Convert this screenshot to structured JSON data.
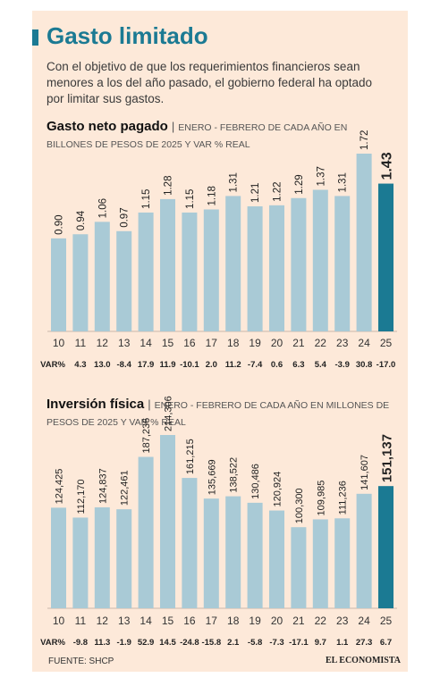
{
  "header": {
    "title": "Gasto limitado",
    "intro": "Con el objetivo de que los requerimientos financieros sean menores a los del año pasado, el gobierno federal ha optado por limitar sus gastos."
  },
  "colors": {
    "background": "#fde9d9",
    "accent": "#1b7a93",
    "bar": "#a9cad6",
    "highlight_bar": "#1b7a93"
  },
  "chart_data": [
    {
      "type": "bar",
      "title": "Gasto neto pagado",
      "subtitle": "ENERO  - FEBRERO DE CADA AÑO EN BILLONES DE PESOS DE 2025 Y VAR % REAL",
      "categories": [
        "10",
        "11",
        "12",
        "13",
        "14",
        "15",
        "16",
        "17",
        "18",
        "19",
        "20",
        "21",
        "22",
        "23",
        "24",
        "25"
      ],
      "values": [
        0.9,
        0.94,
        1.06,
        0.97,
        1.15,
        1.28,
        1.15,
        1.18,
        1.31,
        1.21,
        1.22,
        1.29,
        1.37,
        1.31,
        1.72,
        1.43
      ],
      "value_labels": [
        "0.90",
        "0.94",
        "1.06",
        "0.97",
        "1.15",
        "1.28",
        "1.15",
        "1.18",
        "1.31",
        "1.21",
        "1.22",
        "1.29",
        "1.37",
        "1.31",
        "1.72",
        "1.43"
      ],
      "var_label": "VAR%",
      "var": [
        "4.3",
        "13.0",
        "-8.4",
        "17.9",
        "11.9",
        "-10.1",
        "2.0",
        "11.2",
        "-7.4",
        "0.6",
        "6.3",
        "5.4",
        "-3.9",
        "30.8",
        "-17.0"
      ],
      "highlight_index": 15,
      "legend": "none",
      "grid": false
    },
    {
      "type": "bar",
      "title": "Inversión física",
      "subtitle": "ENERO  - FEBRERO DE CADA AÑO EN MILLONES DE PESOS DE 2025 Y VAR % REAL",
      "categories": [
        "10",
        "11",
        "12",
        "13",
        "14",
        "15",
        "16",
        "17",
        "18",
        "19",
        "20",
        "21",
        "22",
        "23",
        "24",
        "25"
      ],
      "values": [
        124425,
        112170,
        124837,
        122461,
        187236,
        214306,
        161215,
        135669,
        138522,
        130486,
        120924,
        100300,
        109985,
        111236,
        141607,
        151137
      ],
      "value_labels": [
        "124,425",
        "112,170",
        "124,837",
        "122,461",
        "187,236",
        "214,306",
        "161,215",
        "135,669",
        "138,522",
        "130,486",
        "120,924",
        "100,300",
        "109,985",
        "111,236",
        "141,607",
        "151,137"
      ],
      "var_label": "VAR%",
      "var": [
        "-9.8",
        "11.3",
        "-1.9",
        "52.9",
        "14.5",
        "-24.8",
        "-15.8",
        "2.1",
        "-5.8",
        "-7.3",
        "-17.1",
        "9.7",
        "1.1",
        "27.3",
        "6.7"
      ],
      "highlight_index": 15,
      "legend": "none",
      "grid": false
    }
  ],
  "footer": {
    "source": "FUENTE: SHCP",
    "logo": "EL ECONOMISTA"
  }
}
